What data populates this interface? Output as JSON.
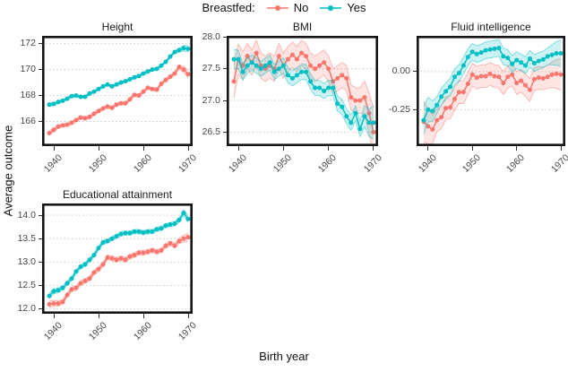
{
  "legend": {
    "title": "Breastfed:",
    "items": [
      {
        "label": "No",
        "color": "#F8766D"
      },
      {
        "label": "Yes",
        "color": "#00BFC4"
      }
    ]
  },
  "axes": {
    "x_label": "Birth year",
    "y_label": "Average outcome"
  },
  "style": {
    "grid_color": "#c6c6c6",
    "border_color": "#151515",
    "ribbon_fill_opacity": 0.2,
    "ribbon_edge_opacity": 0.45
  },
  "chart_data": [
    {
      "type": "line",
      "title": "Height",
      "x_start": 1939,
      "x_step": 1,
      "xlim": [
        1937.4,
        1971.0
      ],
      "ylim": [
        164.1,
        172.6
      ],
      "grid": "horizontal-dotted",
      "yticks": [
        {
          "value": 166,
          "label": "166"
        },
        {
          "value": 168,
          "label": "168"
        },
        {
          "value": 170,
          "label": "170"
        },
        {
          "value": 172,
          "label": "172"
        }
      ],
      "xticks": [
        {
          "value": 1940,
          "label": "1940"
        },
        {
          "value": 1950,
          "label": "1950"
        },
        {
          "value": 1960,
          "label": "1960"
        },
        {
          "value": 1970,
          "label": "1970"
        }
      ],
      "series": [
        {
          "name": "No",
          "color": "#F8766D",
          "band": 0.13,
          "flare_start": 1.3,
          "flare_end": 2.2,
          "values": [
            165.1,
            165.35,
            165.6,
            165.7,
            165.75,
            165.9,
            166.1,
            166.3,
            166.25,
            166.35,
            166.6,
            166.8,
            167.0,
            167.15,
            167.05,
            167.3,
            167.4,
            167.4,
            167.7,
            168.05,
            168.0,
            168.3,
            168.6,
            168.5,
            168.45,
            168.9,
            169.2,
            169.45,
            169.7,
            170.2,
            170.0,
            169.65
          ]
        },
        {
          "name": "Yes",
          "color": "#00BFC4",
          "band": 0.1,
          "flare_start": 1.3,
          "flare_end": 2.5,
          "values": [
            167.3,
            167.35,
            167.5,
            167.6,
            167.75,
            167.95,
            168.0,
            167.9,
            167.9,
            168.15,
            168.3,
            168.5,
            168.7,
            168.85,
            168.7,
            168.85,
            169.0,
            169.1,
            169.25,
            169.4,
            169.5,
            169.7,
            169.85,
            170.0,
            170.05,
            170.3,
            170.6,
            171.0,
            171.35,
            171.5,
            171.65,
            171.6
          ]
        }
      ]
    },
    {
      "type": "line",
      "title": "BMI",
      "x_start": 1939,
      "x_step": 1,
      "xlim": [
        1937.4,
        1971.0
      ],
      "ylim": [
        26.28,
        28.02
      ],
      "grid": "horizontal-dotted",
      "yticks": [
        {
          "value": 26.5,
          "label": "26.5"
        },
        {
          "value": 27.0,
          "label": "27.0"
        },
        {
          "value": 27.5,
          "label": "27.5"
        },
        {
          "value": 28.0,
          "label": "28.0"
        }
      ],
      "xticks": [
        {
          "value": 1940,
          "label": "1940"
        },
        {
          "value": 1950,
          "label": "1950"
        },
        {
          "value": 1960,
          "label": "1960"
        },
        {
          "value": 1970,
          "label": "1970"
        }
      ],
      "series": [
        {
          "name": "No",
          "color": "#F8766D",
          "band": 0.2,
          "flare_start": 1.3,
          "flare_end": 1.9,
          "values": [
            27.3,
            27.65,
            27.55,
            27.7,
            27.6,
            27.75,
            27.55,
            27.5,
            27.55,
            27.5,
            27.7,
            27.55,
            27.65,
            27.72,
            27.65,
            27.75,
            27.7,
            27.55,
            27.5,
            27.55,
            27.6,
            27.5,
            27.3,
            27.35,
            27.4,
            27.35,
            27.05,
            27.0,
            27.0,
            27.05,
            26.8,
            26.5
          ]
        },
        {
          "name": "Yes",
          "color": "#00BFC4",
          "band": 0.12,
          "flare_start": 1.3,
          "flare_end": 2.2,
          "values": [
            27.65,
            27.65,
            27.45,
            27.55,
            27.6,
            27.55,
            27.5,
            27.55,
            27.6,
            27.45,
            27.5,
            27.55,
            27.4,
            27.35,
            27.4,
            27.45,
            27.45,
            27.3,
            27.2,
            27.2,
            27.15,
            27.2,
            27.2,
            26.95,
            26.9,
            26.75,
            26.65,
            26.8,
            26.55,
            26.75,
            26.65,
            26.65
          ]
        }
      ]
    },
    {
      "type": "line",
      "title": "Fluid intelligence",
      "x_start": 1939,
      "x_step": 1,
      "xlim": [
        1937.4,
        1971.0
      ],
      "ylim": [
        -0.49,
        0.235
      ],
      "grid": "horizontal-dotted",
      "yticks": [
        {
          "value": -0.25,
          "label": "-0.25"
        },
        {
          "value": 0.0,
          "label": "0.00"
        }
      ],
      "xticks": [
        {
          "value": 1940,
          "label": "1940"
        },
        {
          "value": 1950,
          "label": "1950"
        },
        {
          "value": 1960,
          "label": "1960"
        },
        {
          "value": 1970,
          "label": "1970"
        }
      ],
      "series": [
        {
          "name": "No",
          "color": "#F8766D",
          "band": 0.075,
          "flare_start": 1.8,
          "flare_end": 1.4,
          "values": [
            -0.33,
            -0.36,
            -0.38,
            -0.32,
            -0.3,
            -0.24,
            -0.235,
            -0.18,
            -0.135,
            -0.135,
            -0.08,
            -0.02,
            -0.04,
            -0.03,
            -0.03,
            -0.015,
            -0.03,
            -0.035,
            -0.075,
            -0.035,
            -0.02,
            -0.075,
            -0.06,
            -0.09,
            -0.12,
            -0.05,
            -0.04,
            -0.045,
            -0.035,
            -0.02,
            -0.015,
            -0.02
          ]
        },
        {
          "name": "Yes",
          "color": "#00BFC4",
          "band": 0.055,
          "flare_start": 1.7,
          "flare_end": 1.6,
          "values": [
            -0.32,
            -0.25,
            -0.26,
            -0.22,
            -0.165,
            -0.13,
            -0.1,
            -0.035,
            -0.01,
            0.04,
            0.095,
            0.13,
            0.115,
            0.125,
            0.14,
            0.145,
            0.15,
            0.155,
            0.1,
            0.09,
            0.05,
            0.075,
            0.06,
            0.04,
            0.085,
            0.055,
            0.07,
            0.08,
            0.1,
            0.11,
            0.12,
            0.12
          ]
        }
      ]
    },
    {
      "type": "line",
      "title": "Educational attainment",
      "x_start": 1939,
      "x_step": 1,
      "xlim": [
        1937.4,
        1971.0
      ],
      "ylim": [
        11.9,
        14.25
      ],
      "grid": "horizontal-dotted",
      "yticks": [
        {
          "value": 12.0,
          "label": "12.0"
        },
        {
          "value": 12.5,
          "label": "12.5"
        },
        {
          "value": 13.0,
          "label": "13.0"
        },
        {
          "value": 13.5,
          "label": "13.5"
        },
        {
          "value": 14.0,
          "label": "14.0"
        }
      ],
      "xticks": [
        {
          "value": 1940,
          "label": "1940"
        },
        {
          "value": 1950,
          "label": "1950"
        },
        {
          "value": 1960,
          "label": "1960"
        },
        {
          "value": 1970,
          "label": "1970"
        }
      ],
      "series": [
        {
          "name": "No",
          "color": "#F8766D",
          "band": 0.05,
          "flare_start": 1.4,
          "flare_end": 1.7,
          "values": [
            12.1,
            12.12,
            12.12,
            12.15,
            12.3,
            12.42,
            12.45,
            12.55,
            12.6,
            12.65,
            12.78,
            12.85,
            12.95,
            13.1,
            13.08,
            13.05,
            13.08,
            13.05,
            13.12,
            13.15,
            13.2,
            13.2,
            13.22,
            13.25,
            13.22,
            13.25,
            13.35,
            13.4,
            13.35,
            13.45,
            13.5,
            13.53
          ]
        },
        {
          "name": "Yes",
          "color": "#00BFC4",
          "band": 0.045,
          "flare_start": 1.3,
          "flare_end": 1.6,
          "values": [
            12.28,
            12.38,
            12.4,
            12.45,
            12.55,
            12.65,
            12.8,
            12.9,
            12.95,
            13.05,
            13.15,
            13.3,
            13.42,
            13.45,
            13.5,
            13.55,
            13.6,
            13.62,
            13.62,
            13.65,
            13.65,
            13.63,
            13.65,
            13.65,
            13.7,
            13.72,
            13.78,
            13.8,
            13.82,
            13.9,
            14.05,
            13.92
          ]
        }
      ]
    }
  ]
}
